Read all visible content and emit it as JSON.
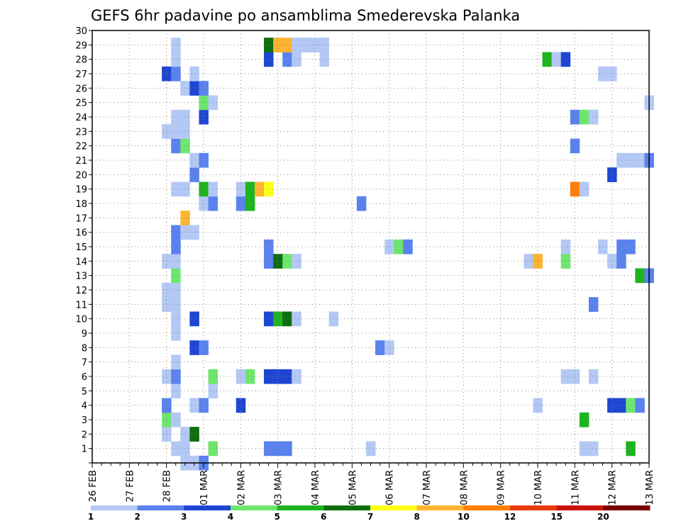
{
  "chart_data": {
    "type": "heatmap",
    "title": "GEFS 6hr padavine po ansamblima Smederevska Palanka",
    "xlabel": "",
    "ylabel": "",
    "x_tick_labels": [
      "26 FEB",
      "27 FEB",
      "28 FEB",
      "01 MAR",
      "02 MAR",
      "03 MAR",
      "04 MAR",
      "05 MAR",
      "06 MAR",
      "07 MAR",
      "08 MAR",
      "09 MAR",
      "10 MAR",
      "11 MAR",
      "12 MAR",
      "13 MAR"
    ],
    "x_unit": "6-hour step",
    "x_range": [
      0,
      60
    ],
    "y_tick_labels": [
      "1",
      "2",
      "3",
      "4",
      "5",
      "6",
      "7",
      "8",
      "9",
      "10",
      "11",
      "12",
      "13",
      "14",
      "15",
      "16",
      "17",
      "18",
      "19",
      "20",
      "21",
      "22",
      "23",
      "24",
      "25",
      "26",
      "27",
      "28",
      "29",
      "30"
    ],
    "y_range": [
      0,
      30
    ],
    "grid": true,
    "legend": {
      "placement": "bottom",
      "labels": [
        "1",
        "2",
        "3",
        "4",
        "5",
        "6",
        "7",
        "8",
        "10",
        "12",
        "15",
        "20"
      ],
      "colors": [
        "#b4c8f5",
        "#5a82ee",
        "#1e46d2",
        "#6ee66e",
        "#1eb41e",
        "#0f6e0f",
        "#ffff19",
        "#ffb432",
        "#ff7d00",
        "#e63c0a",
        "#c8140a",
        "#7d0000"
      ]
    },
    "cells": [
      [
        10,
        0,
        1
      ],
      [
        11,
        0,
        1
      ],
      [
        12,
        0,
        2
      ],
      [
        9,
        1,
        1
      ],
      [
        10,
        1,
        1
      ],
      [
        13,
        1,
        4
      ],
      [
        19,
        1,
        2
      ],
      [
        20,
        1,
        2
      ],
      [
        21,
        1,
        2
      ],
      [
        30,
        1,
        1
      ],
      [
        53,
        1,
        1
      ],
      [
        54,
        1,
        1
      ],
      [
        58,
        1,
        5
      ],
      [
        8,
        2,
        1
      ],
      [
        10,
        2,
        1
      ],
      [
        11,
        2,
        6
      ],
      [
        8,
        3,
        4
      ],
      [
        9,
        3,
        1
      ],
      [
        53,
        3,
        5
      ],
      [
        8,
        4,
        2
      ],
      [
        11,
        4,
        1
      ],
      [
        12,
        4,
        2
      ],
      [
        16,
        4,
        3
      ],
      [
        48,
        4,
        1
      ],
      [
        56,
        4,
        3
      ],
      [
        57,
        4,
        3
      ],
      [
        58,
        4,
        4
      ],
      [
        59,
        4,
        2
      ],
      [
        9,
        5,
        1
      ],
      [
        13,
        5,
        1
      ],
      [
        8,
        6,
        1
      ],
      [
        9,
        6,
        2
      ],
      [
        13,
        6,
        4
      ],
      [
        16,
        6,
        1
      ],
      [
        17,
        6,
        4
      ],
      [
        19,
        6,
        3
      ],
      [
        20,
        6,
        3
      ],
      [
        21,
        6,
        3
      ],
      [
        22,
        6,
        1
      ],
      [
        51,
        6,
        1
      ],
      [
        52,
        6,
        1
      ],
      [
        54,
        6,
        1
      ],
      [
        9,
        7,
        1
      ],
      [
        11,
        8,
        3
      ],
      [
        12,
        8,
        2
      ],
      [
        31,
        8,
        2
      ],
      [
        32,
        8,
        1
      ],
      [
        9,
        9,
        1
      ],
      [
        9,
        10,
        1
      ],
      [
        11,
        10,
        3
      ],
      [
        19,
        10,
        3
      ],
      [
        20,
        10,
        5
      ],
      [
        21,
        10,
        6
      ],
      [
        22,
        10,
        1
      ],
      [
        26,
        10,
        1
      ],
      [
        8,
        11,
        1
      ],
      [
        9,
        11,
        1
      ],
      [
        54,
        11,
        2
      ],
      [
        8,
        12,
        1
      ],
      [
        9,
        12,
        1
      ],
      [
        9,
        13,
        4
      ],
      [
        59,
        13,
        5
      ],
      [
        60,
        13,
        2
      ],
      [
        8,
        14,
        1
      ],
      [
        9,
        14,
        1
      ],
      [
        19,
        14,
        2
      ],
      [
        20,
        14,
        6
      ],
      [
        21,
        14,
        4
      ],
      [
        22,
        14,
        1
      ],
      [
        47,
        14,
        1
      ],
      [
        48,
        14,
        8
      ],
      [
        51,
        14,
        4
      ],
      [
        56,
        14,
        1
      ],
      [
        57,
        14,
        2
      ],
      [
        9,
        15,
        2
      ],
      [
        19,
        15,
        2
      ],
      [
        32,
        15,
        1
      ],
      [
        33,
        15,
        4
      ],
      [
        34,
        15,
        2
      ],
      [
        51,
        15,
        1
      ],
      [
        55,
        15,
        1
      ],
      [
        57,
        15,
        2
      ],
      [
        58,
        15,
        2
      ],
      [
        9,
        16,
        2
      ],
      [
        10,
        16,
        1
      ],
      [
        11,
        16,
        1
      ],
      [
        10,
        17,
        8
      ],
      [
        12,
        18,
        1
      ],
      [
        13,
        18,
        2
      ],
      [
        16,
        18,
        2
      ],
      [
        17,
        18,
        5
      ],
      [
        29,
        18,
        2
      ],
      [
        9,
        19,
        1
      ],
      [
        10,
        19,
        1
      ],
      [
        12,
        19,
        5
      ],
      [
        13,
        19,
        1
      ],
      [
        16,
        19,
        1
      ],
      [
        17,
        19,
        5
      ],
      [
        18,
        19,
        8
      ],
      [
        19,
        19,
        7
      ],
      [
        52,
        19,
        9
      ],
      [
        53,
        19,
        1
      ],
      [
        11,
        20,
        2
      ],
      [
        56,
        20,
        3
      ],
      [
        11,
        21,
        1
      ],
      [
        12,
        21,
        2
      ],
      [
        57,
        21,
        1
      ],
      [
        58,
        21,
        1
      ],
      [
        59,
        21,
        1
      ],
      [
        60,
        21,
        2
      ],
      [
        9,
        22,
        2
      ],
      [
        10,
        22,
        4
      ],
      [
        52,
        22,
        2
      ],
      [
        8,
        23,
        1
      ],
      [
        9,
        23,
        1
      ],
      [
        10,
        23,
        1
      ],
      [
        9,
        24,
        1
      ],
      [
        10,
        24,
        1
      ],
      [
        12,
        24,
        3
      ],
      [
        52,
        24,
        2
      ],
      [
        53,
        24,
        4
      ],
      [
        54,
        24,
        1
      ],
      [
        12,
        25,
        4
      ],
      [
        13,
        25,
        1
      ],
      [
        60,
        25,
        1
      ],
      [
        10,
        26,
        1
      ],
      [
        11,
        26,
        3
      ],
      [
        12,
        26,
        2
      ],
      [
        8,
        27,
        3
      ],
      [
        9,
        27,
        2
      ],
      [
        11,
        27,
        1
      ],
      [
        55,
        27,
        1
      ],
      [
        56,
        27,
        1
      ],
      [
        9,
        28,
        1
      ],
      [
        19,
        28,
        3
      ],
      [
        21,
        28,
        2
      ],
      [
        22,
        28,
        1
      ],
      [
        25,
        28,
        1
      ],
      [
        49,
        28,
        5
      ],
      [
        50,
        28,
        1
      ],
      [
        51,
        28,
        3
      ],
      [
        9,
        29,
        1
      ],
      [
        19,
        29,
        6
      ],
      [
        20,
        29,
        8
      ],
      [
        21,
        29,
        8
      ],
      [
        22,
        29,
        1
      ],
      [
        23,
        29,
        1
      ],
      [
        24,
        29,
        1
      ],
      [
        25,
        29,
        1
      ]
    ]
  }
}
